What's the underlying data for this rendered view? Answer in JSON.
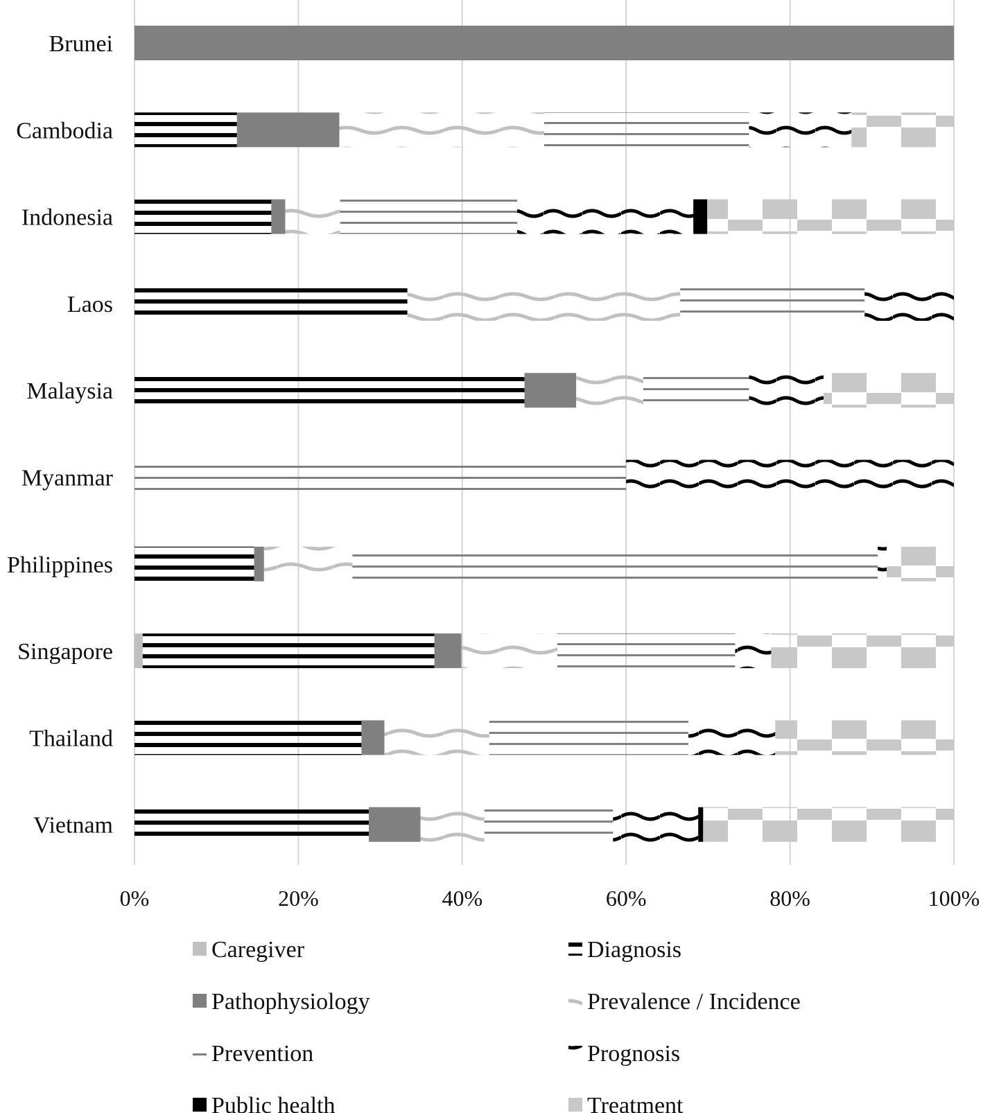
{
  "chart_data": {
    "type": "bar",
    "orientation": "horizontal",
    "stacked": true,
    "normalized": true,
    "categories": [
      "Brunei",
      "Cambodia",
      "Indonesia",
      "Laos",
      "Malaysia",
      "Myanmar",
      "Philippines",
      "Singapore",
      "Thailand",
      "Vietnam"
    ],
    "series": [
      {
        "name": "Caregiver",
        "color": "#c0c0c0",
        "pattern": "solid-light",
        "values": [
          0,
          0,
          0,
          0,
          0,
          0,
          0,
          1,
          0,
          0
        ]
      },
      {
        "name": "Diagnosis",
        "color": "#000000",
        "pattern": "horizontal-stripes",
        "values": [
          0,
          12.5,
          16.7,
          33.3,
          47.6,
          0,
          14.6,
          35.6,
          27.7,
          28.6
        ]
      },
      {
        "name": "Pathophysiology",
        "color": "#808080",
        "pattern": "solid-dark",
        "values": [
          100,
          12.5,
          1.7,
          0,
          6.3,
          0,
          1.2,
          3.3,
          2.8,
          6.3
        ]
      },
      {
        "name": "Prevalence / Incidence",
        "color": "#c0c0c0",
        "pattern": "wave",
        "values": [
          0,
          25,
          6.7,
          33.3,
          8.2,
          0,
          10.8,
          11.7,
          12.8,
          7.8
        ]
      },
      {
        "name": "Prevention",
        "color": "#808080",
        "pattern": "thin-lines",
        "values": [
          0,
          25,
          21.6,
          22.5,
          12.9,
          60,
          64.1,
          21.7,
          24.3,
          15.7
        ]
      },
      {
        "name": "Prognosis",
        "color": "#000000",
        "pattern": "bold-wave",
        "values": [
          0,
          12.5,
          21.5,
          10.9,
          9.1,
          40,
          1.1,
          4.4,
          10.6,
          10.4
        ]
      },
      {
        "name": "Public health",
        "color": "#000000",
        "pattern": "solid-black",
        "values": [
          0,
          0,
          1.7,
          0,
          0,
          0,
          0,
          0,
          0,
          0.6
        ]
      },
      {
        "name": "Treatment",
        "color": "#c0c0c0",
        "pattern": "checker",
        "values": [
          0,
          12.5,
          30.1,
          0,
          15.9,
          0,
          8.2,
          22.3,
          21.8,
          30.6
        ]
      }
    ],
    "x_ticks": [
      "0%",
      "20%",
      "40%",
      "60%",
      "80%",
      "100%"
    ],
    "xlim": [
      0,
      100
    ],
    "grid": "vertical",
    "legend": "bottom"
  }
}
